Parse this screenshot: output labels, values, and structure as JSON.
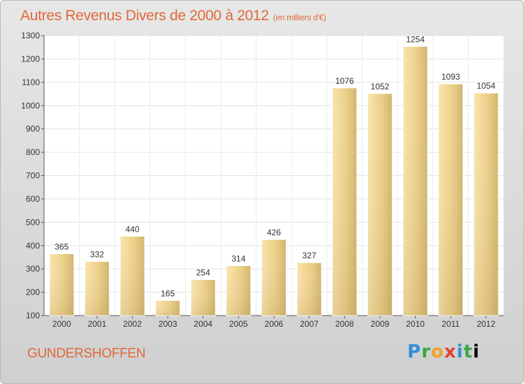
{
  "title": "Autres Revenus Divers de 2000 à 2012",
  "subtitle": "(en milliers d'€)",
  "location": "GUNDERSHOFFEN",
  "logo": {
    "letters": [
      "P",
      "r",
      "o",
      "x",
      "i",
      "t",
      "i"
    ]
  },
  "colors": {
    "title": "#e0693a",
    "bar_light": "#f7dd9a",
    "bar_dark": "#c9a85e"
  },
  "chart_data": {
    "type": "bar",
    "categories": [
      "2000",
      "2001",
      "2002",
      "2003",
      "2004",
      "2005",
      "2006",
      "2007",
      "2008",
      "2009",
      "2010",
      "2011",
      "2012"
    ],
    "values": [
      365,
      332,
      440,
      165,
      254,
      314,
      426,
      327,
      1076,
      1052,
      1254,
      1093,
      1054
    ],
    "ylim": [
      100,
      1300
    ],
    "yticks": [
      100,
      200,
      300,
      400,
      500,
      600,
      700,
      800,
      900,
      1000,
      1100,
      1200,
      1300
    ],
    "grid": true
  }
}
